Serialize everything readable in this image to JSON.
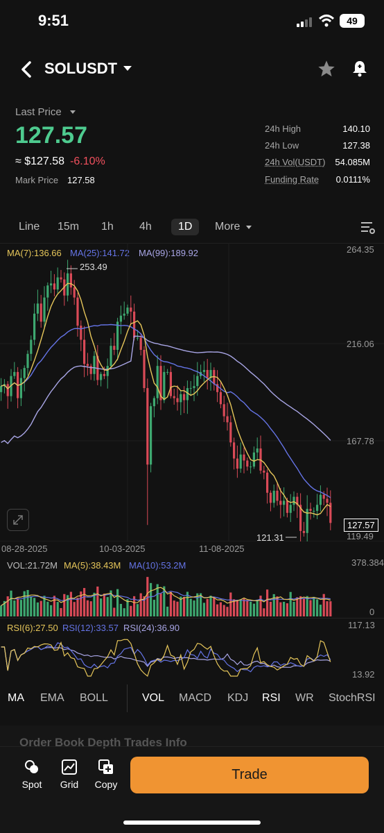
{
  "status": {
    "time": "9:51",
    "battery": "49"
  },
  "header": {
    "pair": "SOLUSDT"
  },
  "price": {
    "last_label": "Last Price",
    "last": "127.57",
    "approx": "≈ $127.58",
    "change": "-6.10%",
    "mark_label": "Mark Price",
    "mark": "127.58"
  },
  "stats": [
    {
      "label": "24h High",
      "value": "140.10"
    },
    {
      "label": "24h Low",
      "value": "127.38"
    },
    {
      "label": "24h Vol(USDT)",
      "value": "54.085M"
    },
    {
      "label": "Funding Rate",
      "value": "0.0111%"
    }
  ],
  "timeframes": [
    "Line",
    "15m",
    "1h",
    "4h",
    "1D",
    "More"
  ],
  "active_timeframe": "1D",
  "ma_legend": {
    "ma7": "MA(7):136.66",
    "ma25": "MA(25):141.72",
    "ma99": "MA(99):189.92"
  },
  "price_axis": [
    "264.35",
    "216.06",
    "167.78",
    "119.49"
  ],
  "high_marker": "253.49",
  "low_marker": "121.31",
  "current_price": "127.57",
  "dates": [
    "08-28-2025",
    "10-03-2025",
    "11-08-2025"
  ],
  "vol_legend": {
    "vol": "VOL:21.72M",
    "ma5": "MA(5):38.43M",
    "ma10": "MA(10):53.2M"
  },
  "vol_axis": [
    "378.384M",
    "0"
  ],
  "rsi_legend": {
    "rsi6": "RSI(6):27.50",
    "rsi12": "RSI(12):33.57",
    "rsi24": "RSI(24):36.90"
  },
  "rsi_axis": [
    "117.13",
    "13.92"
  ],
  "indicators_main": [
    "MA",
    "EMA",
    "BOLL"
  ],
  "indicators_sub": [
    "VOL",
    "MACD",
    "KDJ",
    "RSI",
    "WR",
    "StochRSI"
  ],
  "hidden_tabs": "Order Book   Depth   Trades   Info",
  "bottom": {
    "spot": "Spot",
    "grid": "Grid",
    "copy": "Copy",
    "trade": "Trade"
  },
  "colors": {
    "up": "#3ea870",
    "down": "#d94a57",
    "ma7": "#e6c65a",
    "ma25": "#6574e6",
    "ma99": "#a9a6e6",
    "accent": "#f09432"
  },
  "chart_data": {
    "type": "candlestick",
    "x": [
      "08-28-2025",
      "10-03-2025",
      "11-08-2025"
    ],
    "closes": [
      196,
      197,
      191,
      201,
      203,
      190,
      200,
      205,
      212,
      219,
      232,
      237,
      228,
      240,
      246,
      247,
      244,
      250,
      249,
      241,
      252,
      245,
      240,
      226,
      219,
      207,
      206,
      202,
      211,
      199,
      202,
      201,
      206,
      216,
      214,
      228,
      231,
      232,
      235,
      233,
      220,
      220,
      214,
      195,
      157,
      186,
      190,
      206,
      189,
      203,
      203,
      191,
      190,
      188,
      192,
      189,
      195,
      195,
      196,
      201,
      203,
      204,
      200,
      204,
      197,
      193,
      187,
      181,
      178,
      168,
      160,
      155,
      162,
      159,
      156,
      156,
      163,
      165,
      154,
      153,
      143,
      138,
      144,
      139,
      137,
      139,
      133,
      137,
      141,
      137,
      124,
      123,
      135,
      134,
      134,
      137,
      142,
      140,
      138,
      128
    ],
    "ylim": [
      119.49,
      264.35
    ],
    "high_label": 253.49,
    "low_label": 121.31
  }
}
